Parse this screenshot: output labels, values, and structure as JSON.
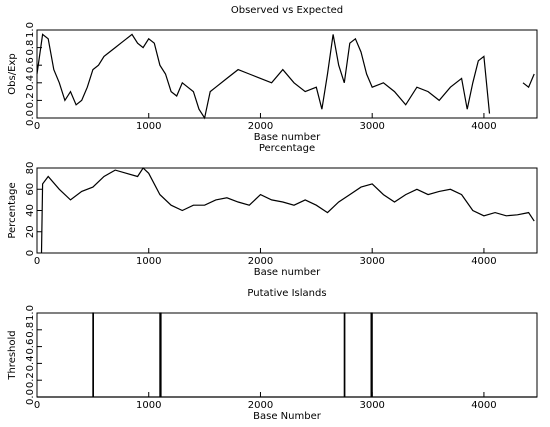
{
  "chart_data": [
    {
      "type": "line",
      "title": "Observed vs Expected",
      "xlabel": "Base number",
      "ylabel": "Obs/Exp",
      "xlim": [
        0,
        4475
      ],
      "ylim": [
        0,
        1.0
      ],
      "xticks": [
        0,
        1000,
        2000,
        3000,
        4000
      ],
      "yticks": [
        {
          "value": 0,
          "label": "0.0"
        },
        0.2,
        0.4,
        0.6,
        0.8,
        {
          "value": 1.0,
          "label": "1.0"
        }
      ],
      "color": "#000000",
      "x": [
        0,
        50,
        100,
        150,
        200,
        250,
        300,
        350,
        400,
        450,
        500,
        550,
        600,
        650,
        700,
        750,
        800,
        850,
        900,
        950,
        1000,
        1050,
        1100,
        1150,
        1200,
        1250,
        1300,
        1350,
        1400,
        1450,
        1500,
        1550,
        1600,
        1700,
        1800,
        1900,
        2000,
        2100,
        2200,
        2300,
        2400,
        2500,
        2550,
        2600,
        2650,
        2700,
        2750,
        2800,
        2850,
        2900,
        2950,
        3000,
        3100,
        3200,
        3300,
        3400,
        3500,
        3600,
        3700,
        3800,
        3850,
        3900,
        3950,
        4000,
        4050,
        4200,
        4350,
        4400,
        4450
      ],
      "values": [
        0.5,
        0.95,
        0.9,
        0.55,
        0.4,
        0.2,
        0.3,
        0.15,
        0.2,
        0.35,
        0.55,
        0.6,
        0.7,
        0.75,
        0.8,
        0.85,
        0.9,
        0.95,
        0.85,
        0.8,
        0.9,
        0.85,
        0.6,
        0.5,
        0.3,
        0.25,
        0.4,
        0.35,
        0.3,
        0.1,
        0.0,
        0.3,
        0.35,
        0.45,
        0.55,
        0.5,
        0.45,
        0.4,
        0.55,
        0.4,
        0.3,
        0.35,
        0.1,
        0.5,
        0.95,
        0.6,
        0.4,
        0.85,
        0.9,
        0.75,
        0.5,
        0.35,
        0.4,
        0.3,
        0.15,
        0.35,
        0.3,
        0.2,
        0.35,
        0.45,
        0.1,
        0.4,
        0.65,
        0.7,
        0.05,
        null,
        0.4,
        0.35,
        0.5
      ]
    },
    {
      "type": "line",
      "title": "Percentage",
      "xlabel": "Base number",
      "ylabel": "Percentage",
      "xlim": [
        0,
        4475
      ],
      "ylim": [
        0,
        80
      ],
      "xticks": [
        0,
        1000,
        2000,
        3000,
        4000
      ],
      "yticks": [
        0,
        20,
        40,
        60,
        80
      ],
      "color": "#000000",
      "x": [
        40,
        50,
        100,
        200,
        300,
        400,
        500,
        600,
        700,
        800,
        900,
        950,
        1000,
        1100,
        1200,
        1300,
        1400,
        1500,
        1600,
        1700,
        1800,
        1900,
        2000,
        2100,
        2200,
        2300,
        2400,
        2500,
        2600,
        2700,
        2800,
        2900,
        3000,
        3100,
        3200,
        3300,
        3400,
        3500,
        3600,
        3700,
        3800,
        3900,
        4000,
        4100,
        4200,
        4300,
        4400,
        4450
      ],
      "values": [
        0,
        65,
        72,
        60,
        50,
        58,
        62,
        72,
        78,
        75,
        72,
        80,
        75,
        55,
        45,
        40,
        45,
        45,
        50,
        52,
        48,
        45,
        55,
        50,
        48,
        45,
        50,
        45,
        38,
        48,
        55,
        62,
        65,
        55,
        48,
        55,
        60,
        55,
        58,
        60,
        55,
        40,
        35,
        38,
        35,
        36,
        38,
        30
      ]
    },
    {
      "type": "line",
      "title": "Putative Islands",
      "xlabel": "Base Number",
      "ylabel": "Threshold",
      "xlim": [
        0,
        4475
      ],
      "ylim": [
        0,
        1.0
      ],
      "xticks": [
        0,
        1000,
        2000,
        3000,
        4000
      ],
      "yticks": [
        {
          "value": 0,
          "label": "0.0"
        },
        0.2,
        0.4,
        0.6,
        0.8,
        {
          "value": 1.0,
          "label": "1.0"
        }
      ],
      "color": "#000000",
      "x": [
        0,
        500,
        500,
        505,
        505,
        1100,
        1100,
        1110,
        1110,
        2750,
        2750,
        2755,
        2755,
        2990,
        2990,
        3000,
        3000,
        4475
      ],
      "values": [
        0,
        0,
        1,
        1,
        0,
        0,
        1,
        1,
        0,
        0,
        1,
        1,
        0,
        0,
        1,
        1,
        0,
        0
      ]
    }
  ]
}
